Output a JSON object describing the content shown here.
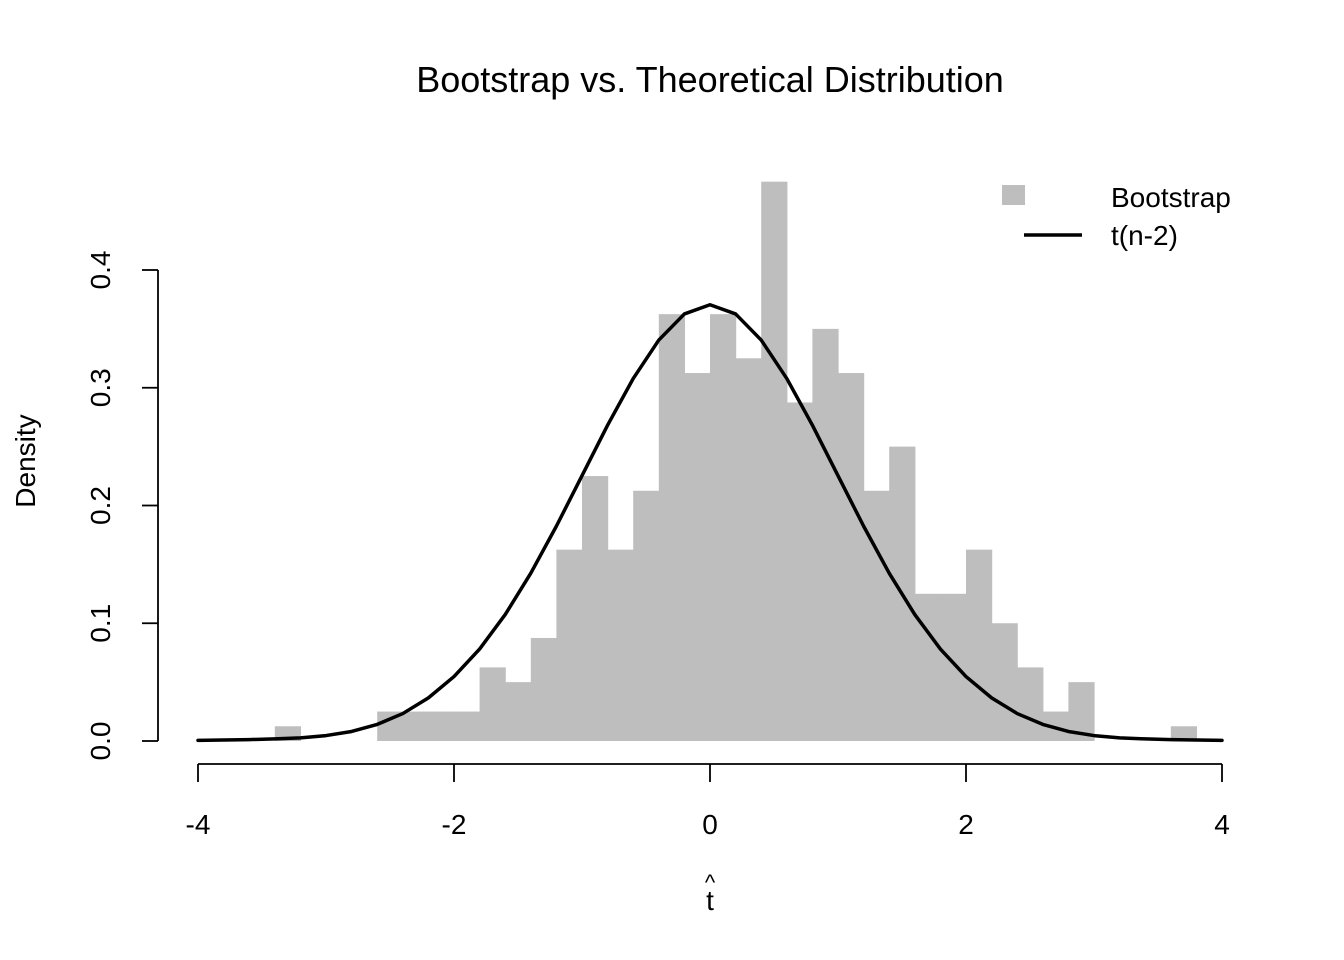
{
  "chart_data": {
    "type": "histogram",
    "title": "Bootstrap vs. Theoretical Distribution",
    "xlabel": "t",
    "xlabel_accent": "^",
    "ylabel": "Density",
    "xlim": [
      -4,
      4
    ],
    "ylim": [
      0,
      0.4
    ],
    "x_ticks": [
      -4,
      -2,
      0,
      2,
      4
    ],
    "x_tick_labels": [
      "-4",
      "-2",
      "0",
      "2",
      "4"
    ],
    "y_ticks": [
      0,
      0.1,
      0.2,
      0.3,
      0.4
    ],
    "y_tick_labels": [
      "0.0",
      "0.1",
      "0.2",
      "0.3",
      "0.4"
    ],
    "grid": false,
    "legend_position": "top-right",
    "bin_width": 0.2,
    "colors": {
      "bars": "#bebebe",
      "curve": "#000000"
    },
    "series": [
      {
        "name": "Bootstrap",
        "kind": "histogram",
        "bins": [
          {
            "x0": -3.4,
            "x1": -3.2,
            "density": 0.0125
          },
          {
            "x0": -3.2,
            "x1": -3.0,
            "density": 0
          },
          {
            "x0": -3.0,
            "x1": -2.8,
            "density": 0
          },
          {
            "x0": -2.8,
            "x1": -2.6,
            "density": 0
          },
          {
            "x0": -2.6,
            "x1": -2.4,
            "density": 0.025
          },
          {
            "x0": -2.4,
            "x1": -2.2,
            "density": 0.025
          },
          {
            "x0": -2.2,
            "x1": -2.0,
            "density": 0.025
          },
          {
            "x0": -2.0,
            "x1": -1.8,
            "density": 0.025
          },
          {
            "x0": -1.8,
            "x1": -1.6,
            "density": 0.0625
          },
          {
            "x0": -1.6,
            "x1": -1.4,
            "density": 0.05
          },
          {
            "x0": -1.4,
            "x1": -1.2,
            "density": 0.0875
          },
          {
            "x0": -1.2,
            "x1": -1.0,
            "density": 0.1625
          },
          {
            "x0": -1.0,
            "x1": -0.8,
            "density": 0.225
          },
          {
            "x0": -0.8,
            "x1": -0.6,
            "density": 0.1625
          },
          {
            "x0": -0.6,
            "x1": -0.4,
            "density": 0.2125
          },
          {
            "x0": -0.4,
            "x1": -0.2,
            "density": 0.3625
          },
          {
            "x0": -0.2,
            "x1": 0.0,
            "density": 0.3125
          },
          {
            "x0": 0.0,
            "x1": 0.2,
            "density": 0.3625
          },
          {
            "x0": 0.2,
            "x1": 0.4,
            "density": 0.325
          },
          {
            "x0": 0.4,
            "x1": 0.6,
            "density": 0.475
          },
          {
            "x0": 0.6,
            "x1": 0.8,
            "density": 0.2875
          },
          {
            "x0": 0.8,
            "x1": 1.0,
            "density": 0.35
          },
          {
            "x0": 1.0,
            "x1": 1.2,
            "density": 0.3125
          },
          {
            "x0": 1.2,
            "x1": 1.4,
            "density": 0.2125
          },
          {
            "x0": 1.4,
            "x1": 1.6,
            "density": 0.25
          },
          {
            "x0": 1.6,
            "x1": 1.8,
            "density": 0.125
          },
          {
            "x0": 1.8,
            "x1": 2.0,
            "density": 0.125
          },
          {
            "x0": 2.0,
            "x1": 2.2,
            "density": 0.1625
          },
          {
            "x0": 2.2,
            "x1": 2.4,
            "density": 0.1
          },
          {
            "x0": 2.4,
            "x1": 2.6,
            "density": 0.0625
          },
          {
            "x0": 2.6,
            "x1": 2.8,
            "density": 0.025
          },
          {
            "x0": 2.8,
            "x1": 3.0,
            "density": 0.05
          },
          {
            "x0": 3.0,
            "x1": 3.2,
            "density": 0
          },
          {
            "x0": 3.2,
            "x1": 3.4,
            "density": 0
          },
          {
            "x0": 3.4,
            "x1": 3.6,
            "density": 0
          },
          {
            "x0": 3.6,
            "x1": 3.8,
            "density": 0.0125
          }
        ]
      },
      {
        "name": "t(n-2)",
        "kind": "line",
        "x": [
          -4.0,
          -3.8,
          -3.6,
          -3.4,
          -3.2,
          -3.0,
          -2.8,
          -2.6,
          -2.4,
          -2.2,
          -2.0,
          -1.8,
          -1.6,
          -1.4,
          -1.2,
          -1.0,
          -0.8,
          -0.6,
          -0.4,
          -0.2,
          0.0,
          0.2,
          0.4,
          0.6,
          0.8,
          1.0,
          1.2,
          1.4,
          1.6,
          1.8,
          2.0,
          2.2,
          2.4,
          2.6,
          2.8,
          3.0,
          3.2,
          3.4,
          3.6,
          3.8,
          4.0
        ],
        "y": [
          0.0005,
          0.0008,
          0.0012,
          0.0018,
          0.0027,
          0.0046,
          0.0081,
          0.0141,
          0.0233,
          0.0366,
          0.0547,
          0.0781,
          0.1074,
          0.1425,
          0.1825,
          0.2253,
          0.2682,
          0.3078,
          0.3405,
          0.3627,
          0.3705,
          0.3627,
          0.3405,
          0.3078,
          0.2682,
          0.2253,
          0.1825,
          0.1425,
          0.1074,
          0.0781,
          0.0547,
          0.0366,
          0.0233,
          0.0141,
          0.0081,
          0.0046,
          0.0027,
          0.0018,
          0.0012,
          0.0008,
          0.0005
        ]
      }
    ],
    "legend": [
      {
        "label": "Bootstrap",
        "symbol": "square"
      },
      {
        "label": "t(n-2)",
        "symbol": "line"
      }
    ]
  }
}
